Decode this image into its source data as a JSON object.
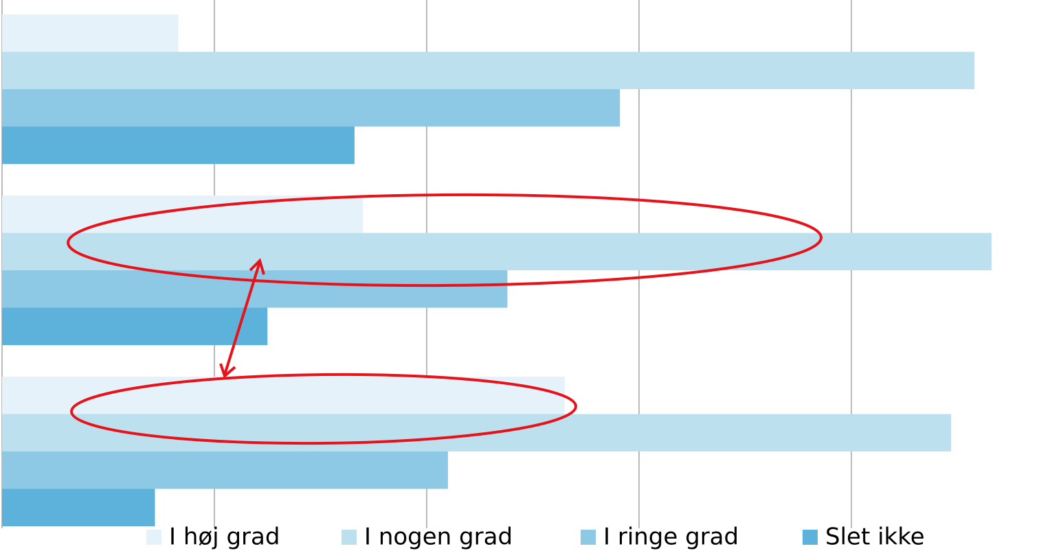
{
  "chart_data": {
    "type": "hbar",
    "categories": [
      null,
      null,
      null
    ],
    "series": [
      {
        "name": "I høj grad",
        "color": "#e5f2fa",
        "values": [
          8.3,
          17.0,
          26.5
        ]
      },
      {
        "name": "I nogen grad",
        "color": "#bde0ef",
        "values": [
          45.8,
          46.6,
          44.7
        ]
      },
      {
        "name": "I ringe grad",
        "color": "#8dc8e5",
        "values": [
          29.1,
          23.8,
          21.0
        ]
      },
      {
        "name": "Slet ikke",
        "color": "#5db2dc",
        "values": [
          16.6,
          12.5,
          7.2
        ]
      }
    ],
    "xlim": [
      0,
      50
    ],
    "xticks": [
      0,
      10,
      20,
      30,
      40,
      50
    ],
    "grid": true,
    "legend": "bottom"
  }
}
